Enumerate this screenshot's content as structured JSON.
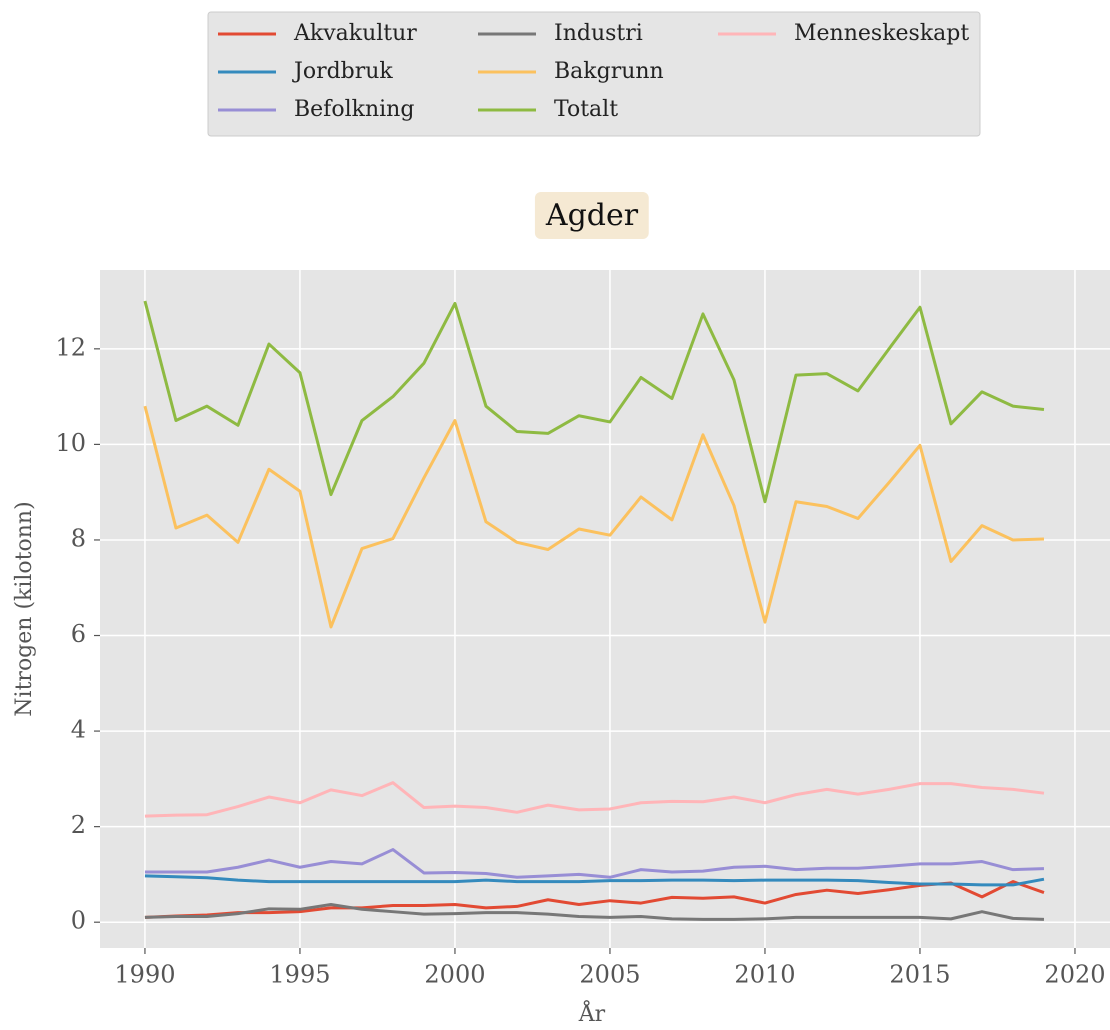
{
  "chart_data": {
    "type": "line",
    "title": "Agder",
    "xlabel": "År",
    "ylabel": "Nitrogen (kilotonn)",
    "x": [
      1990,
      1991,
      1992,
      1993,
      1994,
      1995,
      1996,
      1997,
      1998,
      1999,
      2000,
      2001,
      2002,
      2003,
      2004,
      2005,
      2006,
      2007,
      2008,
      2009,
      2010,
      2011,
      2012,
      2013,
      2014,
      2015,
      2016,
      2017,
      2018,
      2019
    ],
    "series": [
      {
        "name": "Akvakultur",
        "color": "#E24A33",
        "values": [
          0.1,
          0.13,
          0.15,
          0.2,
          0.2,
          0.22,
          0.3,
          0.3,
          0.35,
          0.35,
          0.37,
          0.3,
          0.33,
          0.47,
          0.37,
          0.45,
          0.4,
          0.52,
          0.5,
          0.53,
          0.4,
          0.58,
          0.67,
          0.6,
          0.68,
          0.77,
          0.82,
          0.53,
          0.85,
          0.62
        ]
      },
      {
        "name": "Jordbruk",
        "color": "#348ABD",
        "values": [
          0.97,
          0.95,
          0.93,
          0.88,
          0.85,
          0.85,
          0.85,
          0.85,
          0.85,
          0.85,
          0.85,
          0.88,
          0.85,
          0.85,
          0.85,
          0.87,
          0.87,
          0.88,
          0.88,
          0.87,
          0.88,
          0.88,
          0.88,
          0.87,
          0.83,
          0.8,
          0.8,
          0.78,
          0.78,
          0.9
        ]
      },
      {
        "name": "Befolkning",
        "color": "#988ED5",
        "values": [
          1.05,
          1.05,
          1.05,
          1.15,
          1.3,
          1.15,
          1.27,
          1.22,
          1.52,
          1.03,
          1.04,
          1.02,
          0.94,
          0.97,
          1.0,
          0.94,
          1.1,
          1.05,
          1.07,
          1.15,
          1.17,
          1.1,
          1.13,
          1.13,
          1.17,
          1.22,
          1.22,
          1.27,
          1.1,
          1.12
        ]
      },
      {
        "name": "Industri",
        "color": "#777777",
        "values": [
          0.1,
          0.12,
          0.12,
          0.18,
          0.28,
          0.27,
          0.37,
          0.27,
          0.22,
          0.17,
          0.18,
          0.2,
          0.2,
          0.17,
          0.12,
          0.1,
          0.12,
          0.07,
          0.06,
          0.06,
          0.07,
          0.1,
          0.1,
          0.1,
          0.1,
          0.1,
          0.07,
          0.22,
          0.08,
          0.06
        ]
      },
      {
        "name": "Bakgrunn",
        "color": "#FBC15E",
        "values": [
          10.8,
          8.25,
          8.52,
          7.95,
          9.48,
          9.02,
          6.18,
          7.82,
          8.03,
          9.3,
          10.5,
          8.38,
          7.95,
          7.8,
          8.23,
          8.1,
          8.9,
          8.42,
          10.2,
          8.72,
          6.28,
          8.8,
          8.7,
          8.45,
          9.2,
          9.98,
          7.55,
          8.3,
          8.0,
          8.02
        ]
      },
      {
        "name": "Totalt",
        "color": "#8EBA42",
        "values": [
          13.0,
          10.5,
          10.8,
          10.4,
          12.1,
          11.5,
          8.95,
          10.5,
          11.0,
          11.7,
          12.95,
          10.8,
          10.27,
          10.23,
          10.6,
          10.47,
          11.4,
          10.96,
          12.73,
          11.35,
          8.8,
          11.45,
          11.48,
          11.12,
          12.0,
          12.87,
          10.43,
          11.1,
          10.8,
          10.73
        ]
      },
      {
        "name": "Menneskeskapt",
        "color": "#FFB5B8",
        "values": [
          2.22,
          2.24,
          2.25,
          2.42,
          2.62,
          2.5,
          2.77,
          2.65,
          2.92,
          2.4,
          2.43,
          2.4,
          2.3,
          2.45,
          2.35,
          2.37,
          2.5,
          2.53,
          2.52,
          2.62,
          2.5,
          2.67,
          2.78,
          2.68,
          2.78,
          2.9,
          2.9,
          2.82,
          2.78,
          2.7
        ]
      }
    ],
    "xlim": [
      1988.55,
      2021.13
    ],
    "ylim": [
      -0.54,
      13.65
    ],
    "xticks": [
      1990,
      1995,
      2000,
      2005,
      2010,
      2015,
      2020
    ],
    "yticks": [
      0,
      2,
      4,
      6,
      8,
      10,
      12
    ],
    "grid": true
  }
}
